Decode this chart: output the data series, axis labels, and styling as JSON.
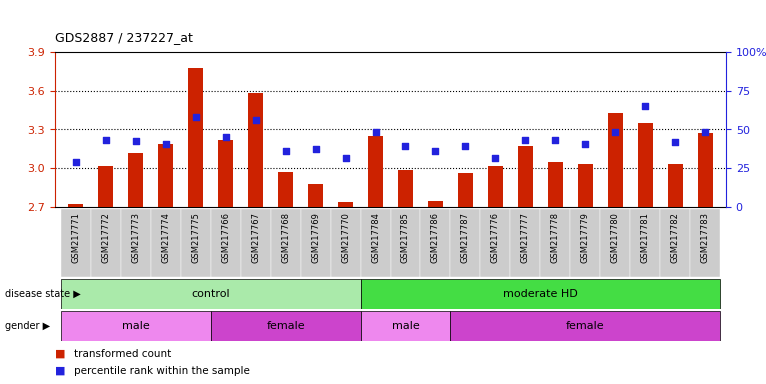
{
  "title": "GDS2887 / 237227_at",
  "samples": [
    "GSM217771",
    "GSM217772",
    "GSM217773",
    "GSM217774",
    "GSM217775",
    "GSM217766",
    "GSM217767",
    "GSM217768",
    "GSM217769",
    "GSM217770",
    "GSM217784",
    "GSM217785",
    "GSM217786",
    "GSM217787",
    "GSM217776",
    "GSM217777",
    "GSM217778",
    "GSM217779",
    "GSM217780",
    "GSM217781",
    "GSM217782",
    "GSM217783"
  ],
  "bar_values": [
    2.72,
    3.02,
    3.12,
    3.19,
    3.78,
    3.22,
    3.58,
    2.97,
    2.88,
    2.74,
    3.25,
    2.99,
    2.75,
    2.96,
    3.02,
    3.17,
    3.05,
    3.03,
    3.43,
    3.35,
    3.03,
    3.27
  ],
  "blue_values": [
    3.05,
    3.22,
    3.21,
    3.19,
    3.4,
    3.24,
    3.37,
    3.13,
    3.15,
    3.08,
    3.28,
    3.17,
    3.13,
    3.17,
    3.08,
    3.22,
    3.22,
    3.19,
    3.28,
    3.48,
    3.2,
    3.28
  ],
  "ylim": [
    2.7,
    3.9
  ],
  "yticks_left": [
    2.7,
    3.0,
    3.3,
    3.6,
    3.9
  ],
  "yticks_right": [
    0,
    25,
    50,
    75,
    100
  ],
  "ytick_right_labels": [
    "0",
    "25",
    "50",
    "75",
    "100%"
  ],
  "bar_color": "#cc2200",
  "blue_color": "#2222dd",
  "disease_state_groups": [
    {
      "label": "control",
      "start": 0,
      "end": 10,
      "color": "#aaeaaa"
    },
    {
      "label": "moderate HD",
      "start": 10,
      "end": 22,
      "color": "#44dd44"
    }
  ],
  "gender_groups": [
    {
      "label": "male",
      "start": 0,
      "end": 5,
      "color": "#ee88ee"
    },
    {
      "label": "female",
      "start": 5,
      "end": 10,
      "color": "#cc44cc"
    },
    {
      "label": "male",
      "start": 10,
      "end": 13,
      "color": "#ee88ee"
    },
    {
      "label": "female",
      "start": 13,
      "end": 22,
      "color": "#cc44cc"
    }
  ],
  "legend_items": [
    {
      "label": "transformed count",
      "color": "#cc2200"
    },
    {
      "label": "percentile rank within the sample",
      "color": "#2222dd"
    }
  ],
  "xtick_bg_color": "#cccccc",
  "xtick_fontsize": 6.0,
  "bar_width": 0.5
}
